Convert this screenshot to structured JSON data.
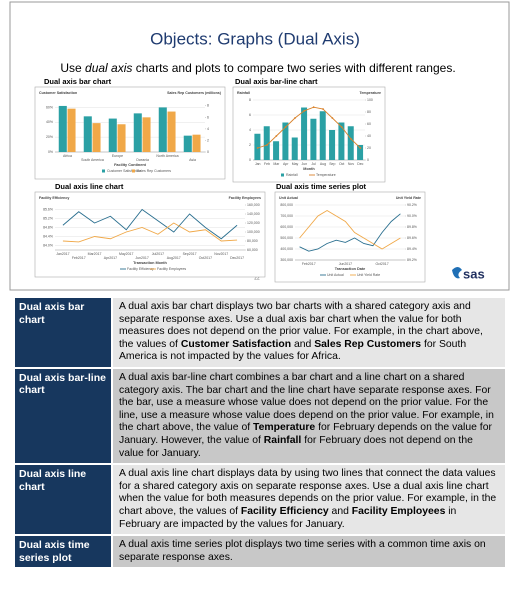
{
  "slide": {
    "title": "Objects: Graphs (Dual Axis)",
    "subtitle": [
      {
        "text": "Use ",
        "italic": false
      },
      {
        "text": "dual axis",
        "italic": true
      },
      {
        "text": " charts and plots to compare two series with different ranges.",
        "italic": false
      }
    ],
    "page_number": "22",
    "logo": "sas",
    "charts": [
      {
        "type": "bar",
        "heading": "Dual axis bar chart",
        "y_label": "Customer Satisfaction",
        "y2_label": "Sales Rep Customers (millions)",
        "x_label": "Facility Continent",
        "stagger": true,
        "categories": [
          "Africa",
          "South America",
          "Europe",
          "Oceania",
          "North America",
          "Asia"
        ],
        "series": [
          {
            "name": "Customer Satisfaction",
            "color": "#2aa0a4",
            "kind": "bar",
            "axis": "y",
            "values": [
              62,
              48,
              45,
              52,
              60,
              22
            ]
          },
          {
            "name": "Sales Rep Customers",
            "color": "#f0a848",
            "kind": "bar",
            "axis": "y2",
            "values": [
              7.5,
              5,
              4.8,
              6,
              7,
              3
            ]
          }
        ],
        "ylim": [
          0,
          70
        ],
        "yticks": [
          {
            "value": 0,
            "label": "0%"
          },
          {
            "value": 20,
            "label": "20%"
          },
          {
            "value": 40,
            "label": "40%"
          },
          {
            "value": 60,
            "label": "60%"
          }
        ],
        "y2lim": [
          0,
          9
        ],
        "y2ticks": [
          0,
          2,
          4,
          6,
          8
        ],
        "grid": true
      },
      {
        "type": "bar-line",
        "heading": "Dual axis bar-line chart",
        "y_label": "Rainfall",
        "y2_label": "Temperature",
        "x_label": "Month",
        "stagger": false,
        "categories": [
          "Jan",
          "Feb",
          "Mar",
          "Apr",
          "May",
          "Jun",
          "Jul",
          "Aug",
          "Sep",
          "Oct",
          "Nov",
          "Dec"
        ],
        "series": [
          {
            "name": "Rainfall",
            "color": "#2aa0a4",
            "kind": "bar",
            "axis": "y",
            "values": [
              3.5,
              4.5,
              2.5,
              5,
              3,
              7,
              5.5,
              6.5,
              4,
              5,
              4.5,
              2
            ]
          },
          {
            "name": "Temperature",
            "color": "#d9822b",
            "kind": "line",
            "axis": "y2",
            "values": [
              20,
              25,
              40,
              55,
              70,
              82,
              88,
              85,
              70,
              55,
              35,
              20
            ]
          }
        ],
        "ylim": [
          0,
          8
        ],
        "yticks": [
          0,
          2,
          4,
          6,
          8
        ],
        "y2lim": [
          0,
          100
        ],
        "y2ticks": [
          0,
          20,
          40,
          60,
          80,
          100
        ],
        "grid": true
      },
      {
        "type": "line",
        "heading": "Dual axis line chart",
        "y_label": "Facility Efficiency",
        "y2_label": "Facility Employees",
        "x_label": "Transaction Month",
        "stagger": true,
        "categories": [
          "Jan2017",
          "Feb2017",
          "Mar2017",
          "Apr2017",
          "May2017",
          "Jun2017",
          "Jul2017",
          "Aug2017",
          "Sep2017",
          "Oct2017",
          "Nov2017",
          "Dec2017"
        ],
        "series": [
          {
            "name": "Facility Efficiency",
            "color": "#2a6f8f",
            "kind": "line",
            "axis": "y",
            "values": [
              84.9,
              85.5,
              85.0,
              85.3,
              84.7,
              85.6,
              85.1,
              84.6,
              85.4,
              84.8,
              84.3,
              84.9
            ]
          },
          {
            "name": "Facility Employees",
            "color": "#f0a848",
            "kind": "line",
            "axis": "y2",
            "values": [
              80000,
              78000,
              90000,
              85000,
              100000,
              110000,
              95000,
              120000,
              100000,
              105000,
              80000,
              82000
            ]
          }
        ],
        "ylim": [
          83.8,
          85.8
        ],
        "yticks": [
          {
            "value": 84.0,
            "label": "84.0%"
          },
          {
            "value": 84.4,
            "label": "84.4%"
          },
          {
            "value": 84.8,
            "label": "84.8%"
          },
          {
            "value": 85.2,
            "label": "85.2%"
          },
          {
            "value": 85.6,
            "label": "85.6%"
          }
        ],
        "y2lim": [
          60000,
          160000
        ],
        "y2ticks": [
          {
            "value": 60000,
            "label": "60,000"
          },
          {
            "value": 80000,
            "label": "80,000"
          },
          {
            "value": 100000,
            "label": "100,000"
          },
          {
            "value": 120000,
            "label": "120,000"
          },
          {
            "value": 140000,
            "label": "140,000"
          },
          {
            "value": 160000,
            "label": "160,000"
          }
        ],
        "grid": true
      },
      {
        "type": "line",
        "heading": "Dual axis time series plot",
        "y_label": "Unit Actual",
        "y2_label": "Unit Yield Rate",
        "x_label": "Transaction Date",
        "stagger": false,
        "categories": [
          null,
          "Feb2017",
          null,
          null,
          null,
          "Jun2017",
          null,
          null,
          null,
          "Oct2017",
          null,
          null
        ],
        "series": [
          {
            "name": "Unit Actual",
            "color": "#2a6f8f",
            "kind": "line",
            "axis": "y",
            "values": [
              420000,
              380000,
              400000,
              450000,
              480000,
              460000,
              500000,
              450000,
              430000,
              550000,
              650000,
              720000
            ]
          },
          {
            "name": "Unit Yield Rate",
            "color": "#f0a848",
            "kind": "line",
            "axis": "y2",
            "values": [
              89.6,
              89.8,
              90.0,
              90.1,
              90.0,
              89.9,
              89.7,
              89.6,
              89.5,
              89.4,
              89.5,
              89.6
            ]
          }
        ],
        "ylim": [
          300000,
          800000
        ],
        "yticks": [
          {
            "value": 300000,
            "label": "300,000"
          },
          {
            "value": 400000,
            "label": "400,000"
          },
          {
            "value": 500000,
            "label": "500,000"
          },
          {
            "value": 600000,
            "label": "600,000"
          },
          {
            "value": 700000,
            "label": "700,000"
          },
          {
            "value": 800000,
            "label": "800,000"
          }
        ],
        "y2lim": [
          89.2,
          90.2
        ],
        "y2ticks": [
          {
            "value": 89.2,
            "label": "89.2%"
          },
          {
            "value": 89.4,
            "label": "89.4%"
          },
          {
            "value": 89.6,
            "label": "89.6%"
          },
          {
            "value": 89.8,
            "label": "89.8%"
          },
          {
            "value": 90.0,
            "label": "90.0%"
          },
          {
            "value": 90.2,
            "label": "90.2%"
          }
        ],
        "grid": true
      }
    ]
  },
  "table": {
    "rows": [
      {
        "term": "Dual axis bar chart",
        "description": [
          {
            "text": "A dual axis bar chart displays two bar charts with a shared category axis and separate response axes. Use a dual axis bar chart when the value for both measures does not depend on the prior value. For example, in the chart above, the values of ",
            "bold": false
          },
          {
            "text": "Customer Satisfaction",
            "bold": true
          },
          {
            "text": " and ",
            "bold": false
          },
          {
            "text": "Sales Rep Customers",
            "bold": true
          },
          {
            "text": " for South America is not impacted by the values for Africa.",
            "bold": false
          }
        ]
      },
      {
        "term": "Dual axis bar-line chart",
        "description": [
          {
            "text": "A dual axis bar-line chart combines a bar chart and a line chart on a shared category axis. The bar chart and the line chart have separate response axes. For the bar, use a measure whose value does not depend on the prior value. For the line, use a measure whose value does depend on the prior value. For example, in the chart above, the value of ",
            "bold": false
          },
          {
            "text": "Temperature",
            "bold": true
          },
          {
            "text": " for February depends on the value for January. However, the value of ",
            "bold": false
          },
          {
            "text": "Rainfall",
            "bold": true
          },
          {
            "text": " for February does not depend on the value for January.",
            "bold": false
          }
        ]
      },
      {
        "term": "Dual axis line chart",
        "description": [
          {
            "text": "A dual axis line chart displays data by using two lines that connect the data values for a shared category axis on separate response axes. Use a dual axis line chart when the value for both measures depends on the prior value. For example, in the chart above, the values of ",
            "bold": false
          },
          {
            "text": "Facility Efficiency",
            "bold": true
          },
          {
            "text": " and ",
            "bold": false
          },
          {
            "text": "Facility Employees",
            "bold": true
          },
          {
            "text": " in February are impacted by the values for January.",
            "bold": false
          }
        ]
      },
      {
        "term": "Dual axis time series plot",
        "description": [
          {
            "text": "A dual axis time series plot displays two time series with a common time axis on separate response axes.",
            "bold": false
          }
        ]
      }
    ]
  }
}
